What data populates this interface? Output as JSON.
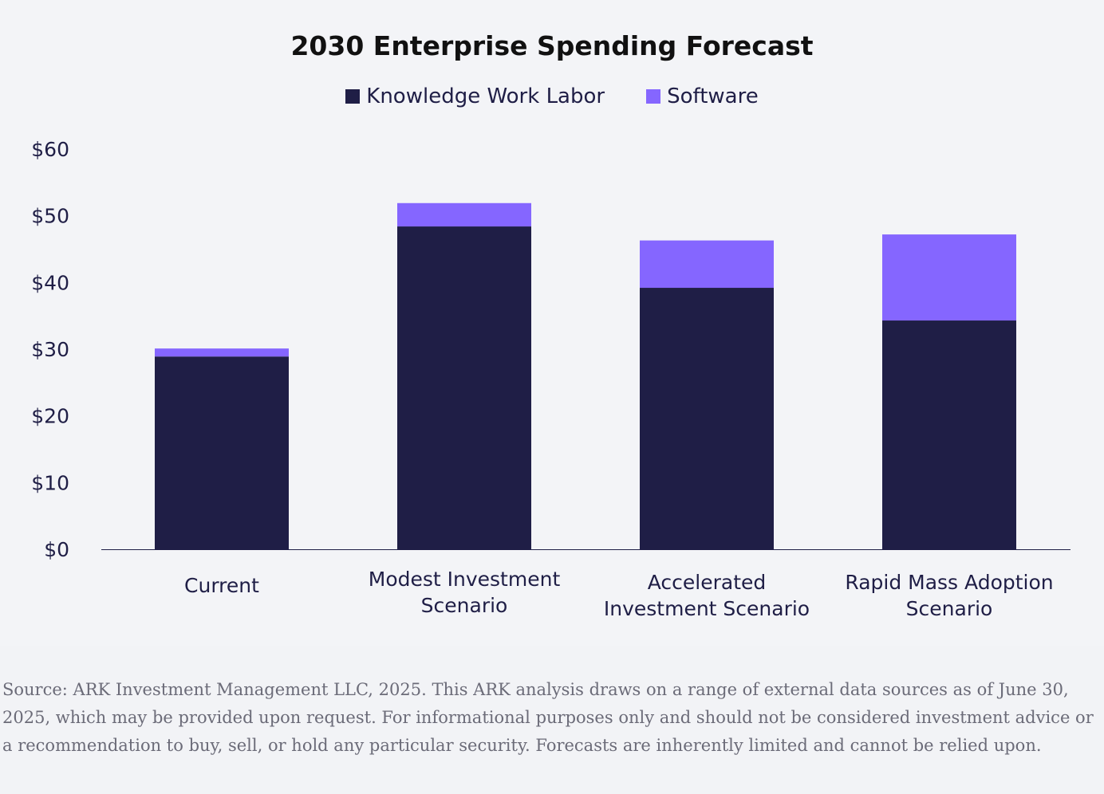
{
  "chart_data": {
    "type": "bar",
    "stacked": true,
    "title": "2030 Enterprise Spending Forecast",
    "categories": [
      [
        "Current"
      ],
      [
        "Modest Investment",
        "Scenario"
      ],
      [
        "Accelerated",
        "Investment Scenario"
      ],
      [
        "Rapid Mass Adoption",
        "Scenario"
      ]
    ],
    "series": [
      {
        "name": "Knowledge Work Labor",
        "color": "#1f1e46",
        "values": [
          28.9,
          48.4,
          39.2,
          34.3
        ]
      },
      {
        "name": "Software",
        "color": "#8566ff",
        "values": [
          1.2,
          3.5,
          7.1,
          12.9
        ]
      }
    ],
    "yticks": [
      "$0",
      "$10",
      "$20",
      "$30",
      "$40",
      "$50",
      "$60"
    ],
    "ylim": [
      0,
      60
    ],
    "xlabel": "",
    "ylabel": "",
    "grid": false,
    "legend_position": "top-center"
  },
  "footer": "Source: ARK Investment Management LLC, 2025. This ARK analysis draws on a range of external data sources as of June 30, 2025, which may be provided upon request. For informational purposes only and should not be considered investment advice or a recommendation to buy, sell, or hold any particular security. Forecasts are inherently limited and cannot be relied upon."
}
